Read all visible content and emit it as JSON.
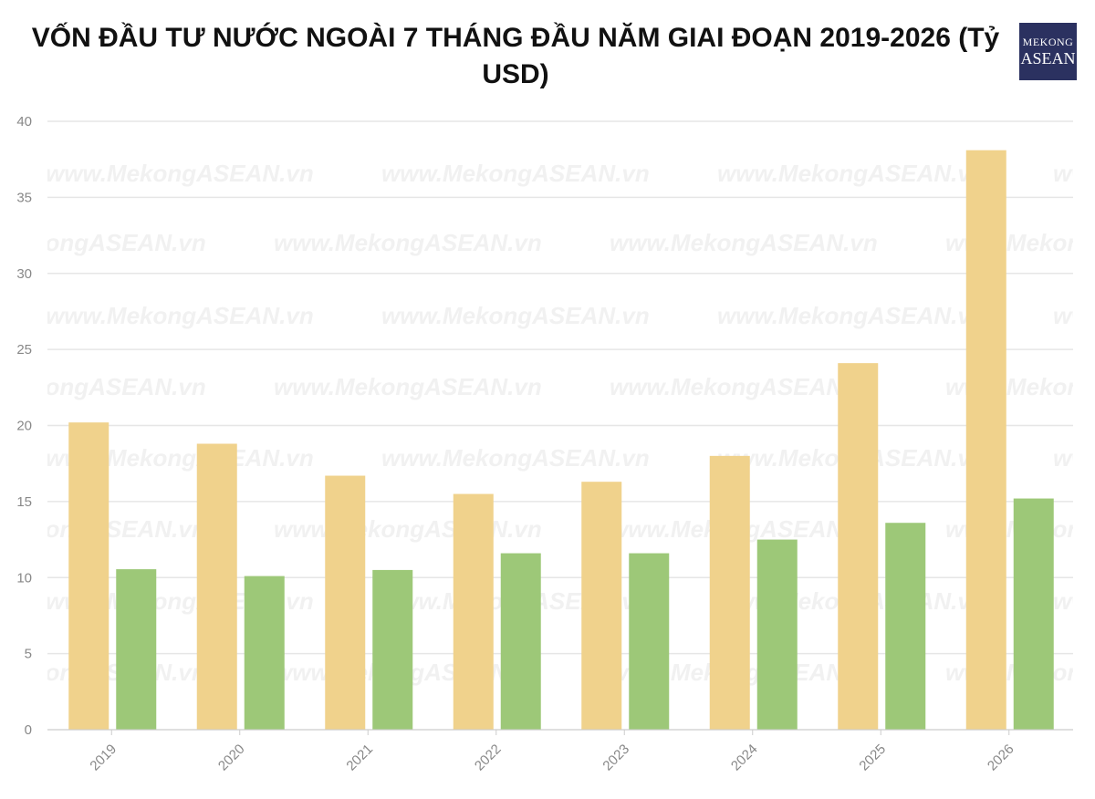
{
  "chart_data": {
    "type": "bar",
    "title": "VỐN ĐẦU TƯ NƯỚC NGOÀI 7 THÁNG ĐẦU NĂM GIAI ĐOẠN 2019-2026 (Tỷ USD)",
    "categories": [
      "2019",
      "2020",
      "2021",
      "2022",
      "2023",
      "2024",
      "2025",
      "2026"
    ],
    "series": [
      {
        "color": "#f0d28c",
        "values": [
          20.2,
          18.8,
          16.7,
          15.5,
          16.3,
          18.0,
          24.1,
          38.1
        ]
      },
      {
        "color": "#9dc878",
        "values": [
          10.55,
          10.1,
          10.5,
          11.6,
          11.6,
          12.5,
          13.6,
          15.2
        ]
      }
    ],
    "ylim": [
      0,
      40
    ],
    "yticks": [
      0,
      5,
      10,
      15,
      20,
      25,
      30,
      35,
      40
    ],
    "grid": true
  },
  "watermark": "www.MekongASEAN.vn",
  "logo": {
    "line1": "MEKONG",
    "line2": "ASEAN"
  }
}
